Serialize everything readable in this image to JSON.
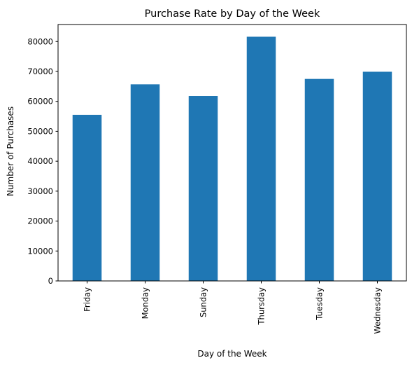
{
  "chart_data": {
    "type": "bar",
    "title": "Purchase Rate by Day of the Week",
    "xlabel": "Day of the Week",
    "ylabel": "Number of Purchases",
    "categories": [
      "Friday",
      "Monday",
      "Sunday",
      "Thursday",
      "Tuesday",
      "Wednesday"
    ],
    "values": [
      55500,
      65700,
      61800,
      81600,
      67500,
      69900
    ],
    "ylim": [
      0,
      85680
    ],
    "yticks": [
      0,
      10000,
      20000,
      30000,
      40000,
      50000,
      60000,
      70000,
      80000
    ],
    "bar_color": "#1f77b4",
    "grid": false,
    "legend": false
  }
}
